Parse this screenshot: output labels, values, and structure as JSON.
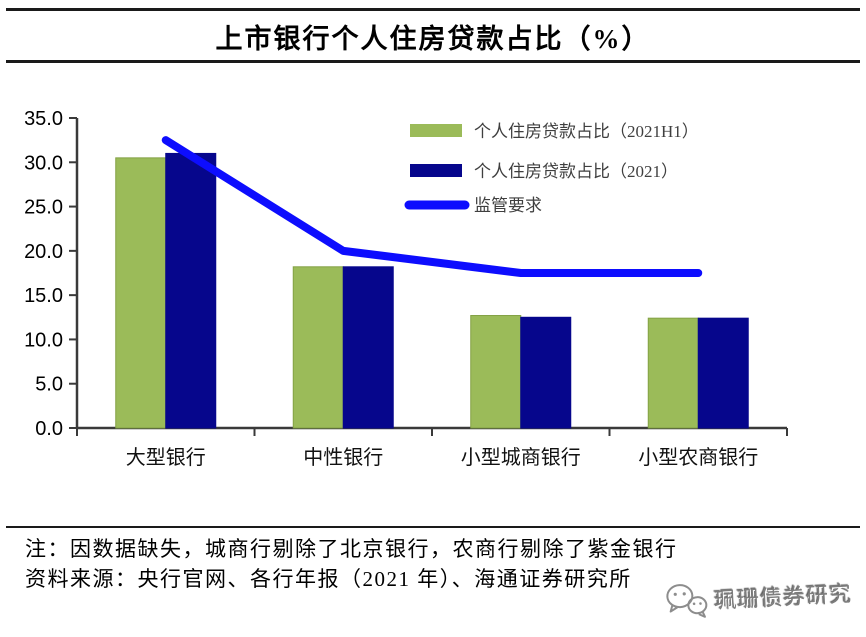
{
  "title": "上市银行个人住房贷款占比（%）",
  "chart_data": {
    "type": "bar",
    "categories": [
      "大型银行",
      "中性银行",
      "小型城商银行",
      "小型农商银行"
    ],
    "series": [
      {
        "name": "个人住房贷款占比（2021H1）",
        "type": "bar",
        "color": "#9BBB59",
        "edge": "#83a144",
        "values": [
          30.5,
          18.2,
          12.7,
          12.4
        ]
      },
      {
        "name": "个人住房贷款占比（2021）",
        "type": "bar",
        "color": "#06068C",
        "edge": "#06068C",
        "values": [
          31.0,
          18.2,
          12.5,
          12.4
        ]
      },
      {
        "name": "监管要求",
        "type": "line",
        "color": "#0D0DFE",
        "values": [
          32.5,
          20.0,
          17.5,
          17.5
        ]
      }
    ],
    "ylim": [
      0,
      35
    ],
    "ytick_step": 5,
    "ytick_labels": [
      "0.0",
      "5.0",
      "10.0",
      "15.0",
      "20.0",
      "25.0",
      "30.0",
      "35.0"
    ],
    "grid": false,
    "legend_position": "top-right-inside",
    "xlabel": "",
    "ylabel": ""
  },
  "axis_color": "#3a3a3a",
  "notes": {
    "line1": "注：因数据缺失，城商行剔除了北京银行，农商行剔除了紫金银行",
    "line2": "资料来源：央行官网、各行年报（2021 年）、海通证券研究所"
  },
  "watermark": {
    "label": "珮珊债券研究",
    "icon": "wechat-icon"
  }
}
